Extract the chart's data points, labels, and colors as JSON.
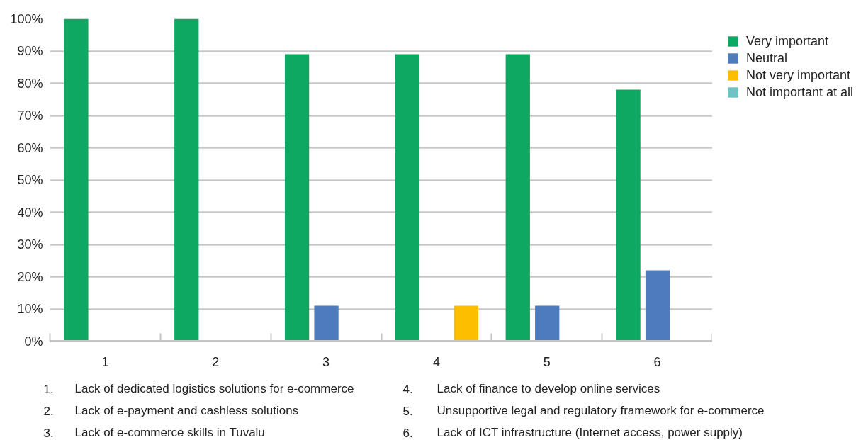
{
  "chart_data": {
    "type": "bar",
    "categories": [
      "1",
      "2",
      "3",
      "4",
      "5",
      "6"
    ],
    "series": [
      {
        "name": "Very important",
        "color": "#0ea862",
        "values": [
          100,
          100,
          89,
          89,
          89,
          78
        ]
      },
      {
        "name": "Neutral",
        "color": "#4e7bbb",
        "values": [
          0,
          0,
          11,
          0,
          11,
          22
        ]
      },
      {
        "name": "Not very important",
        "color": "#fdbe00",
        "values": [
          0,
          0,
          0,
          11,
          0,
          0
        ]
      },
      {
        "name": "Not important at all",
        "color": "#6cc4c4",
        "values": [
          0,
          0,
          0,
          0,
          0,
          0
        ]
      }
    ],
    "ylim": [
      0,
      100
    ],
    "yticks": [
      {
        "value": 0,
        "label": "0%"
      },
      {
        "value": 10,
        "label": "10%"
      },
      {
        "value": 20,
        "label": "20%"
      },
      {
        "value": 30,
        "label": "30%"
      },
      {
        "value": 40,
        "label": "40%"
      },
      {
        "value": 50,
        "label": "50%"
      },
      {
        "value": 60,
        "label": "60%"
      },
      {
        "value": 70,
        "label": "70%"
      },
      {
        "value": 80,
        "label": "80%"
      },
      {
        "value": 90,
        "label": "90%"
      },
      {
        "value": 100,
        "label": "100%"
      }
    ],
    "grid": "y",
    "legend": "top right",
    "annotations": [
      "1. Lack of dedicated logistics solutions for e-commerce",
      "2. Lack of e-payment and cashless solutions",
      "3. Lack of e-commerce skills in Tuvalu",
      "4. Lack of finance to develop online services",
      "5. Unsupportive legal and regulatory framework for e-commerce",
      "6. Lack of ICT infrastructure (Internet access, power supply)"
    ]
  }
}
